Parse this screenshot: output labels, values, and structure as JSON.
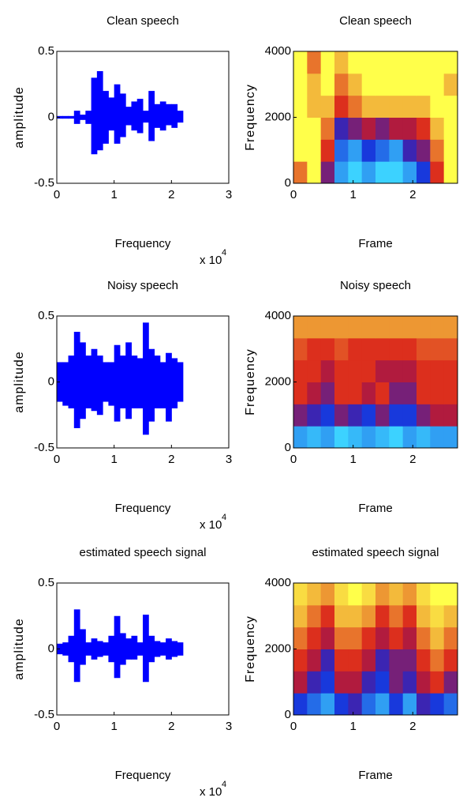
{
  "chart_data": [
    {
      "type": "area",
      "title": "Clean speech",
      "xlabel": "Frequency",
      "ylabel": "amplitude",
      "x_multiplier": {
        "base": "x 10",
        "exponent": "4"
      },
      "color": "#0000ff",
      "xlim": [
        0,
        3
      ],
      "xticks": [
        0,
        1,
        2,
        3
      ],
      "ylim": [
        -0.5,
        0.5
      ],
      "yticks": [
        -0.5,
        0,
        0.5
      ],
      "x": [
        0,
        0.1,
        0.2,
        0.3,
        0.4,
        0.5,
        0.6,
        0.7,
        0.8,
        0.9,
        1.0,
        1.1,
        1.2,
        1.3,
        1.4,
        1.5,
        1.6,
        1.7,
        1.8,
        1.9,
        2.0,
        2.1
      ],
      "upper": [
        0.01,
        0.01,
        0.01,
        0.05,
        0.02,
        0.05,
        0.3,
        0.35,
        0.2,
        0.15,
        0.25,
        0.18,
        0.08,
        0.12,
        0.14,
        0.05,
        0.2,
        0.1,
        0.12,
        0.1,
        0.1,
        0.05
      ],
      "lower": [
        -0.01,
        -0.01,
        -0.01,
        -0.05,
        -0.02,
        -0.05,
        -0.28,
        -0.25,
        -0.2,
        -0.1,
        -0.2,
        -0.15,
        -0.06,
        -0.1,
        -0.12,
        -0.04,
        -0.18,
        -0.08,
        -0.1,
        -0.06,
        -0.08,
        -0.04
      ]
    },
    {
      "type": "heatmap",
      "title": "Clean speech",
      "xlabel": "Frame",
      "ylabel": "Frequency",
      "xlim": [
        0,
        2.75
      ],
      "xticks": [
        0,
        1,
        2
      ],
      "ylim": [
        0,
        4000
      ],
      "yticks": [
        0,
        2000,
        4000
      ],
      "colormap": [
        "#3cd2ff",
        "#1428d8",
        "#d81818",
        "#ffff4a"
      ],
      "z": [
        [
          0.8,
          1,
          0.5,
          0.1,
          0,
          0.1,
          0,
          0,
          0.1,
          0.3,
          0.7,
          1
        ],
        [
          1,
          1,
          0.7,
          0.2,
          0.1,
          0.3,
          0.2,
          0.1,
          0.4,
          0.5,
          0.8,
          1
        ],
        [
          1,
          1,
          0.8,
          0.4,
          0.5,
          0.6,
          0.5,
          0.6,
          0.6,
          0.7,
          0.9,
          1
        ],
        [
          1,
          0.9,
          0.9,
          0.7,
          0.8,
          0.9,
          0.9,
          0.9,
          0.9,
          0.9,
          1,
          1
        ],
        [
          1,
          0.9,
          1,
          0.8,
          0.9,
          1,
          1,
          1,
          1,
          1,
          1,
          0.9
        ],
        [
          1,
          0.8,
          1,
          0.9,
          1,
          1,
          1,
          1,
          1,
          1,
          1,
          1
        ]
      ]
    },
    {
      "type": "area",
      "title": "Noisy speech",
      "xlabel": "Frequency",
      "ylabel": "amplitude",
      "x_multiplier": {
        "base": "x 10",
        "exponent": "4"
      },
      "color": "#0000ff",
      "xlim": [
        0,
        3
      ],
      "xticks": [
        0,
        1,
        2,
        3
      ],
      "ylim": [
        -0.5,
        0.5
      ],
      "yticks": [
        -0.5,
        0,
        0.5
      ],
      "x": [
        0,
        0.1,
        0.2,
        0.3,
        0.4,
        0.5,
        0.6,
        0.7,
        0.8,
        0.9,
        1.0,
        1.1,
        1.2,
        1.3,
        1.4,
        1.5,
        1.6,
        1.7,
        1.8,
        1.9,
        2.0,
        2.1
      ],
      "upper": [
        0.15,
        0.15,
        0.2,
        0.38,
        0.3,
        0.2,
        0.25,
        0.2,
        0.15,
        0.15,
        0.28,
        0.2,
        0.3,
        0.2,
        0.18,
        0.45,
        0.25,
        0.2,
        0.15,
        0.22,
        0.18,
        0.15
      ],
      "lower": [
        -0.15,
        -0.18,
        -0.2,
        -0.35,
        -0.28,
        -0.2,
        -0.22,
        -0.25,
        -0.15,
        -0.18,
        -0.3,
        -0.2,
        -0.28,
        -0.2,
        -0.2,
        -0.4,
        -0.3,
        -0.2,
        -0.2,
        -0.3,
        -0.2,
        -0.15
      ]
    },
    {
      "type": "heatmap",
      "title": "Noisy speech",
      "xlabel": "Frame",
      "ylabel": "Frequency",
      "xlim": [
        0,
        2.75
      ],
      "xticks": [
        0,
        1,
        2
      ],
      "ylim": [
        0,
        4000
      ],
      "yticks": [
        0,
        2000,
        4000
      ],
      "colormap": [
        "#3cd2ff",
        "#1428d8",
        "#d81818",
        "#ffff4a"
      ],
      "z": [
        [
          0.1,
          0.05,
          0.1,
          0,
          0.05,
          0.1,
          0.05,
          0,
          0.1,
          0.05,
          0.1,
          0.1
        ],
        [
          0.5,
          0.4,
          0.3,
          0.5,
          0.4,
          0.3,
          0.5,
          0.3,
          0.3,
          0.5,
          0.6,
          0.6
        ],
        [
          0.7,
          0.6,
          0.5,
          0.7,
          0.7,
          0.6,
          0.7,
          0.5,
          0.5,
          0.7,
          0.7,
          0.7
        ],
        [
          0.7,
          0.7,
          0.6,
          0.7,
          0.7,
          0.7,
          0.6,
          0.6,
          0.6,
          0.7,
          0.7,
          0.7
        ],
        [
          0.75,
          0.7,
          0.7,
          0.75,
          0.7,
          0.7,
          0.7,
          0.7,
          0.7,
          0.75,
          0.75,
          0.75
        ],
        [
          0.85,
          0.85,
          0.85,
          0.85,
          0.85,
          0.85,
          0.85,
          0.85,
          0.85,
          0.85,
          0.85,
          0.85
        ]
      ]
    },
    {
      "type": "area",
      "title": "estimated speech signal",
      "xlabel": "Frequency",
      "ylabel": "amplitude",
      "x_multiplier": {
        "base": "x 10",
        "exponent": "4"
      },
      "color": "#0000ff",
      "xlim": [
        0,
        3
      ],
      "xticks": [
        0,
        1,
        2,
        3
      ],
      "ylim": [
        -0.5,
        0.5
      ],
      "yticks": [
        -0.5,
        0,
        0.5
      ],
      "x": [
        0,
        0.1,
        0.2,
        0.3,
        0.4,
        0.5,
        0.6,
        0.7,
        0.8,
        0.9,
        1.0,
        1.1,
        1.2,
        1.3,
        1.4,
        1.5,
        1.6,
        1.7,
        1.8,
        1.9,
        2.0,
        2.1
      ],
      "upper": [
        0.04,
        0.05,
        0.1,
        0.3,
        0.15,
        0.05,
        0.08,
        0.06,
        0.05,
        0.1,
        0.25,
        0.12,
        0.08,
        0.1,
        0.05,
        0.26,
        0.1,
        0.06,
        0.05,
        0.08,
        0.06,
        0.05
      ],
      "lower": [
        -0.04,
        -0.05,
        -0.1,
        -0.25,
        -0.12,
        -0.05,
        -0.08,
        -0.06,
        -0.05,
        -0.1,
        -0.22,
        -0.12,
        -0.08,
        -0.08,
        -0.05,
        -0.25,
        -0.1,
        -0.06,
        -0.05,
        -0.08,
        -0.06,
        -0.05
      ]
    },
    {
      "type": "heatmap",
      "title": "estimated speech signal",
      "xlabel": "Frame",
      "ylabel": "Frequency",
      "xlim": [
        0,
        2.75
      ],
      "xticks": [
        0,
        1,
        2
      ],
      "ylim": [
        0,
        4000
      ],
      "yticks": [
        0,
        2000,
        4000
      ],
      "colormap": [
        "#3cd2ff",
        "#1428d8",
        "#d81818",
        "#ffff4a"
      ],
      "z": [
        [
          0.3,
          0.2,
          0.1,
          0.3,
          0.4,
          0.2,
          0.1,
          0.3,
          0.1,
          0.4,
          0.3,
          0.2
        ],
        [
          0.6,
          0.4,
          0.3,
          0.6,
          0.6,
          0.4,
          0.3,
          0.5,
          0.4,
          0.6,
          0.7,
          0.5
        ],
        [
          0.7,
          0.6,
          0.4,
          0.7,
          0.7,
          0.6,
          0.4,
          0.5,
          0.5,
          0.7,
          0.8,
          0.7
        ],
        [
          0.8,
          0.7,
          0.6,
          0.8,
          0.8,
          0.7,
          0.6,
          0.7,
          0.6,
          0.8,
          0.9,
          0.8
        ],
        [
          0.9,
          0.8,
          0.7,
          0.9,
          0.9,
          0.85,
          0.7,
          0.8,
          0.7,
          0.9,
          0.95,
          0.9
        ],
        [
          0.95,
          0.9,
          0.85,
          0.95,
          1,
          0.95,
          0.85,
          0.9,
          0.85,
          0.95,
          1,
          1
        ]
      ]
    }
  ]
}
